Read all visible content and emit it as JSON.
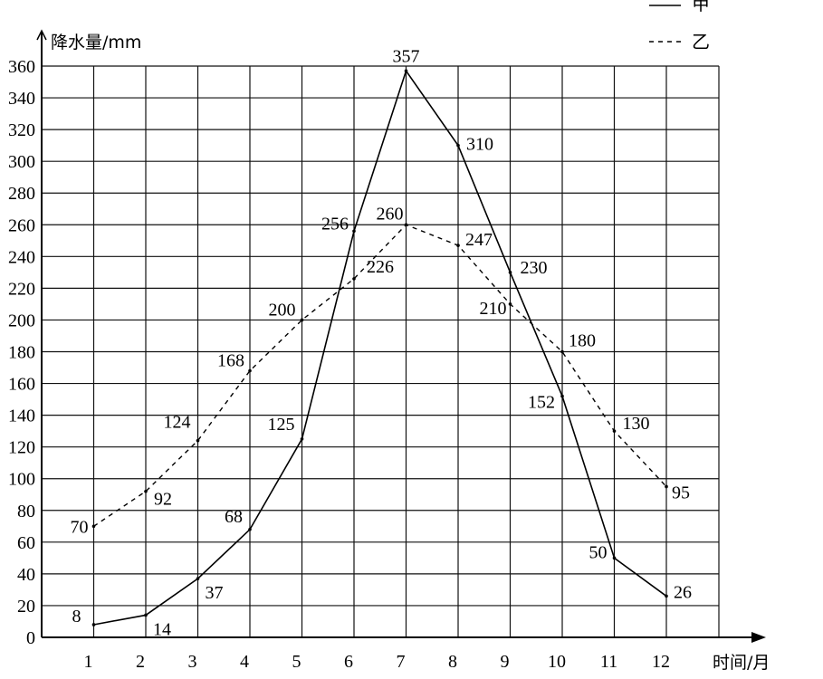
{
  "chart_data": {
    "type": "line",
    "ylabel": "降水量/mm",
    "xlabel": "时间/月",
    "x": [
      1,
      2,
      3,
      4,
      5,
      6,
      7,
      8,
      9,
      10,
      11,
      12
    ],
    "x_tick_labels": [
      "1",
      "2",
      "3",
      "4",
      "5",
      "6",
      "7",
      "8",
      "9",
      "10",
      "11",
      "12"
    ],
    "y_tick_labels": [
      "0",
      "20",
      "40",
      "60",
      "80",
      "100",
      "120",
      "140",
      "160",
      "180",
      "200",
      "220",
      "240",
      "260",
      "280",
      "300",
      "320",
      "340",
      "360"
    ],
    "ylim": [
      0,
      360
    ],
    "xlim": [
      0,
      12.5
    ],
    "grid": true,
    "legend_position": "top-right",
    "series": [
      {
        "name": "甲",
        "style": "solid",
        "values": [
          8,
          14,
          37,
          68,
          125,
          256,
          357,
          310,
          230,
          152,
          50,
          26
        ]
      },
      {
        "name": "乙",
        "style": "dashed",
        "values": [
          70,
          92,
          124,
          168,
          200,
          226,
          260,
          247,
          210,
          180,
          130,
          95
        ]
      }
    ]
  }
}
